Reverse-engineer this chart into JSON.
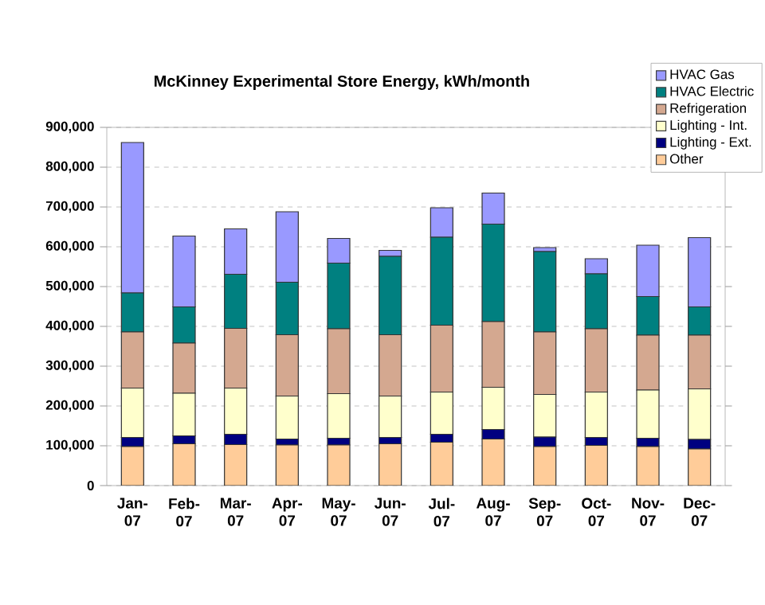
{
  "chart_data": {
    "type": "bar",
    "stacked": true,
    "title": "McKinney Experimental Store Energy, kWh/month",
    "categories": [
      "Jan-07",
      "Feb-07",
      "Mar-07",
      "Apr-07",
      "May-07",
      "Jun-07",
      "Jul-07",
      "Aug-07",
      "Sep-07",
      "Oct-07",
      "Nov-07",
      "Dec-07"
    ],
    "series": [
      {
        "name": "Other",
        "color": "#ffcc99",
        "values": [
          98000,
          105000,
          103000,
          102000,
          102000,
          105000,
          109000,
          117000,
          98000,
          101000,
          98000,
          92000
        ]
      },
      {
        "name": "Lighting - Ext.",
        "color": "#000080",
        "values": [
          23000,
          20000,
          26000,
          15000,
          17000,
          16000,
          20000,
          24000,
          24000,
          20000,
          21000,
          24000
        ]
      },
      {
        "name": "Lighting - Int.",
        "color": "#ffffcc",
        "values": [
          124000,
          107000,
          116000,
          108000,
          112000,
          104000,
          106000,
          106000,
          107000,
          114000,
          121000,
          127000
        ]
      },
      {
        "name": "Refrigeration",
        "color": "#d4a890",
        "values": [
          141000,
          126000,
          150000,
          154000,
          163000,
          154000,
          168000,
          165000,
          157000,
          159000,
          138000,
          135000
        ]
      },
      {
        "name": "HVAC Electric",
        "color": "#008080",
        "values": [
          98000,
          91000,
          136000,
          132000,
          165000,
          197000,
          221000,
          245000,
          202000,
          138000,
          97000,
          71000
        ]
      },
      {
        "name": "HVAC Gas",
        "color": "#9999ff",
        "values": [
          378000,
          178000,
          114000,
          177000,
          62000,
          15000,
          74000,
          78000,
          10000,
          38000,
          129000,
          174000
        ]
      }
    ],
    "ylim": [
      0,
      900000
    ],
    "yticks": [
      {
        "value": 0,
        "label": "0"
      },
      {
        "value": 100000,
        "label": "100,000"
      },
      {
        "value": 200000,
        "label": "200,000"
      },
      {
        "value": 300000,
        "label": "300,000"
      },
      {
        "value": 400000,
        "label": "400,000"
      },
      {
        "value": 500000,
        "label": "500,000"
      },
      {
        "value": 600000,
        "label": "600,000"
      },
      {
        "value": 700000,
        "label": "700,000"
      },
      {
        "value": 800000,
        "label": "800,000"
      },
      {
        "value": 900000,
        "label": "900,000"
      }
    ],
    "grid": "y",
    "legend": "top right"
  }
}
